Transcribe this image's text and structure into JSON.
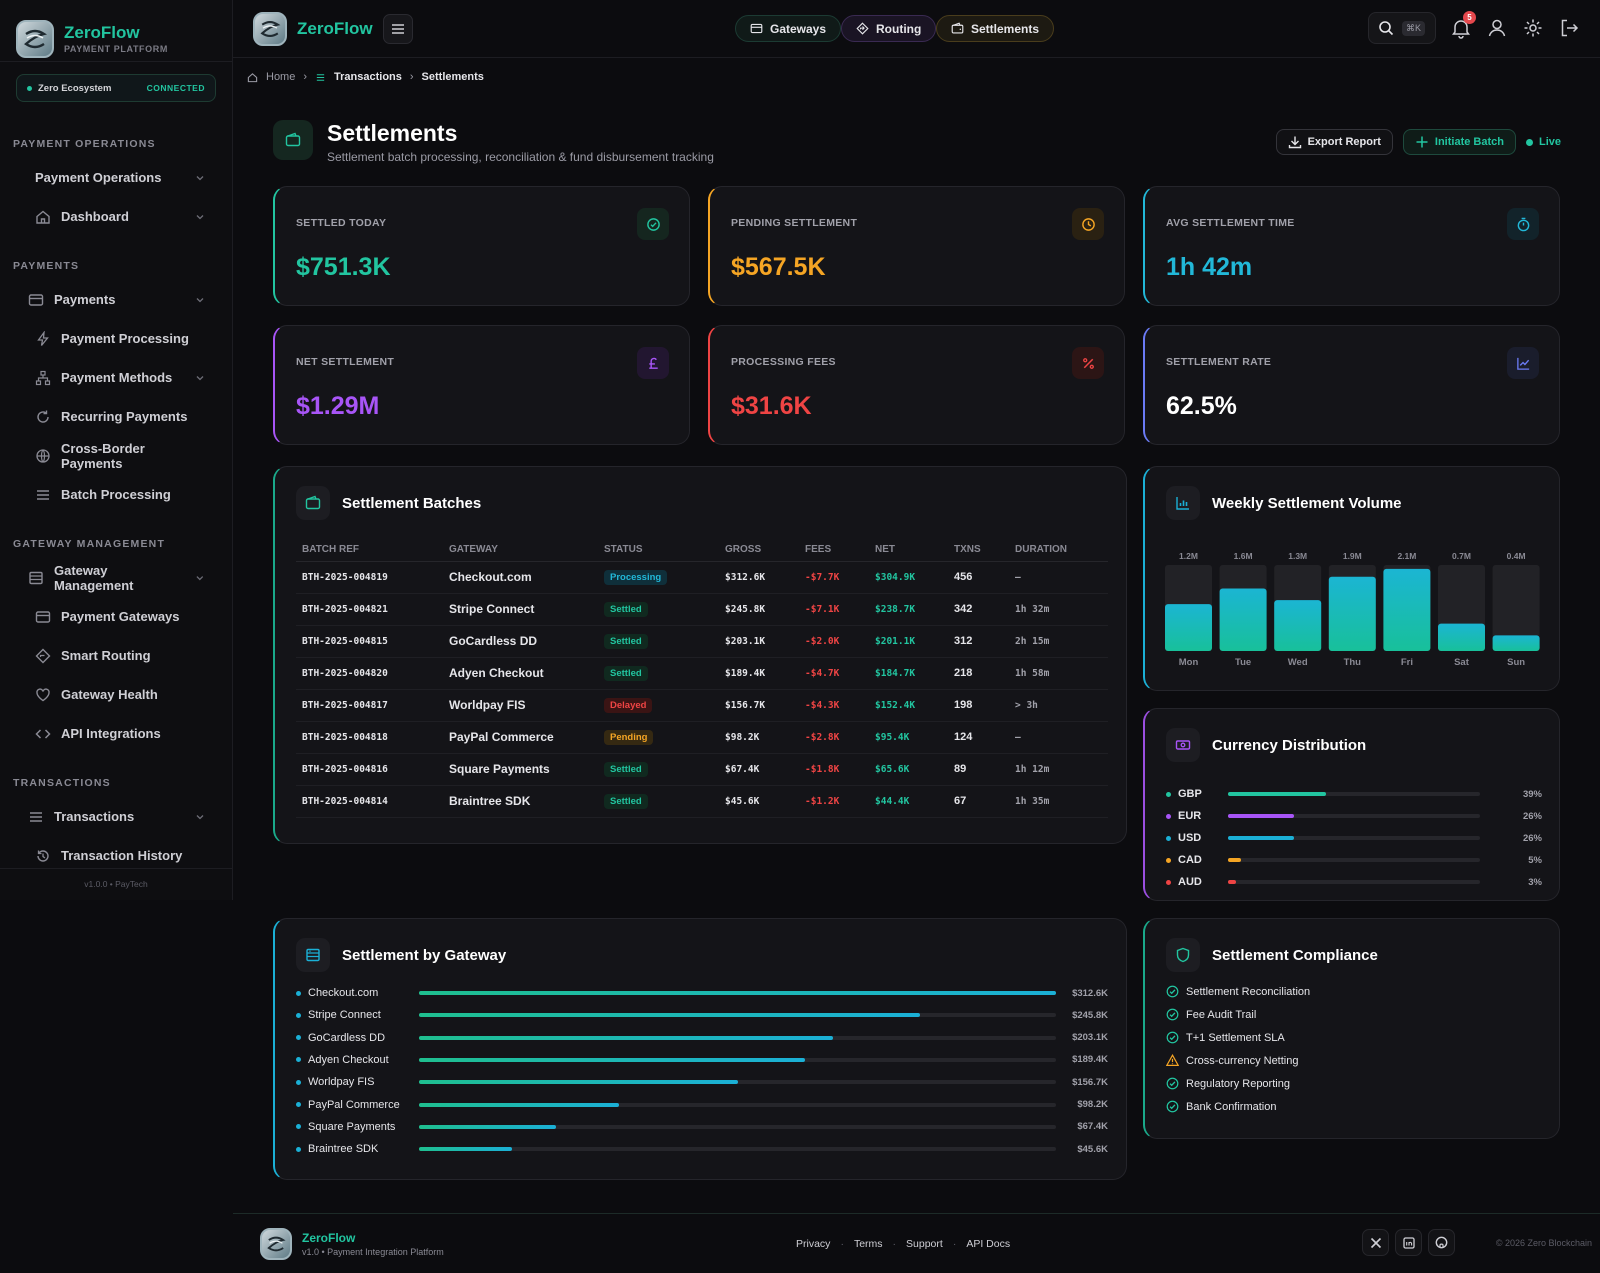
{
  "brand": {
    "name": "ZeroFlow",
    "subtitle": "PAYMENT PLATFORM"
  },
  "ecosystem": {
    "name": "Zero Ecosystem",
    "status": "CONNECTED"
  },
  "sidebar": {
    "sections": [
      {
        "title": "PAYMENT OPERATIONS",
        "items": [
          {
            "label": "Payment Operations",
            "icon": "none",
            "chevron": true
          },
          {
            "label": "Dashboard",
            "icon": "home-icon",
            "chevron": true
          }
        ]
      },
      {
        "title": "PAYMENTS",
        "items": [
          {
            "label": "Payments",
            "icon": "card-icon",
            "chevron": true
          },
          {
            "label": "Payment Processing",
            "icon": "bolt-icon"
          },
          {
            "label": "Payment Methods",
            "icon": "network-icon",
            "chevron": true
          },
          {
            "label": "Recurring Payments",
            "icon": "refresh-icon"
          },
          {
            "label": "Cross-Border Payments",
            "icon": "globe-icon"
          },
          {
            "label": "Batch Processing",
            "icon": "list-icon"
          }
        ]
      },
      {
        "title": "GATEWAY MANAGEMENT",
        "items": [
          {
            "label": "Gateway Management",
            "icon": "server-icon",
            "chevron": true
          },
          {
            "label": "Payment Gateways",
            "icon": "card-icon"
          },
          {
            "label": "Smart Routing",
            "icon": "diamond-icon"
          },
          {
            "label": "Gateway Health",
            "icon": "heart-icon"
          },
          {
            "label": "API Integrations",
            "icon": "code-icon"
          }
        ]
      },
      {
        "title": "TRANSACTIONS",
        "items": [
          {
            "label": "Transactions",
            "icon": "list-icon",
            "chevron": true
          },
          {
            "label": "Transaction History",
            "icon": "history-icon"
          }
        ]
      }
    ],
    "footer": "v1.0.0  •  PayTech"
  },
  "topbar": {
    "pills": [
      {
        "label": "Gateways",
        "icon": "card-icon"
      },
      {
        "label": "Routing",
        "icon": "diamond-icon"
      },
      {
        "label": "Settlements",
        "icon": "wallet-icon"
      }
    ],
    "search_kbd": "⌘K",
    "notifications": "5"
  },
  "breadcrumb": {
    "home": "Home",
    "section": "Transactions",
    "current": "Settlements"
  },
  "page": {
    "title": "Settlements",
    "subtitle": "Settlement batch processing, reconciliation & fund disbursement tracking",
    "export": "Export Report",
    "initiate": "Initiate Batch",
    "live": "Live"
  },
  "stats": [
    {
      "label": "SETTLED TODAY",
      "value": "$751.3K",
      "color": "#22c5a0",
      "icon": "check-circle-icon"
    },
    {
      "label": "PENDING SETTLEMENT",
      "value": "$567.5K",
      "color": "#f5a524",
      "icon": "clock-icon"
    },
    {
      "label": "AVG SETTLEMENT TIME",
      "value": "1h 42m",
      "color": "#22b8d8",
      "icon": "timer-icon"
    },
    {
      "label": "NET SETTLEMENT",
      "value": "$1.29M",
      "color": "#a855f7",
      "icon": "pound-icon"
    },
    {
      "label": "PROCESSING FEES",
      "value": "$31.6K",
      "color": "#ef4444",
      "icon": "percent-icon"
    },
    {
      "label": "SETTLEMENT RATE",
      "value": "62.5%",
      "color": "#ffffff",
      "icon": "trend-icon"
    }
  ],
  "batches": {
    "title": "Settlement Batches",
    "columns": [
      "BATCH REF",
      "GATEWAY",
      "STATUS",
      "GROSS",
      "FEES",
      "NET",
      "TXNS",
      "DURATION"
    ],
    "rows": [
      [
        "BTH-2025-004819",
        "Checkout.com",
        "Processing",
        "$312.6K",
        "-$7.7K",
        "$304.9K",
        "456",
        "—"
      ],
      [
        "BTH-2025-004821",
        "Stripe Connect",
        "Settled",
        "$245.8K",
        "-$7.1K",
        "$238.7K",
        "342",
        "1h 32m"
      ],
      [
        "BTH-2025-004815",
        "GoCardless DD",
        "Settled",
        "$203.1K",
        "-$2.0K",
        "$201.1K",
        "312",
        "2h 15m"
      ],
      [
        "BTH-2025-004820",
        "Adyen Checkout",
        "Settled",
        "$189.4K",
        "-$4.7K",
        "$184.7K",
        "218",
        "1h 58m"
      ],
      [
        "BTH-2025-004817",
        "Worldpay FIS",
        "Delayed",
        "$156.7K",
        "-$4.3K",
        "$152.4K",
        "198",
        "> 3h"
      ],
      [
        "BTH-2025-004818",
        "PayPal Commerce",
        "Pending",
        "$98.2K",
        "-$2.8K",
        "$95.4K",
        "124",
        "—"
      ],
      [
        "BTH-2025-004816",
        "Square Payments",
        "Settled",
        "$67.4K",
        "-$1.8K",
        "$65.6K",
        "89",
        "1h 12m"
      ],
      [
        "BTH-2025-004814",
        "Braintree SDK",
        "Settled",
        "$45.6K",
        "-$1.2K",
        "$44.4K",
        "67",
        "1h 35m"
      ]
    ]
  },
  "weekly": {
    "title": "Weekly Settlement Volume"
  },
  "chart_data": {
    "type": "bar",
    "title": "Weekly Settlement Volume",
    "categories": [
      "Mon",
      "Tue",
      "Wed",
      "Thu",
      "Fri",
      "Sat",
      "Sun"
    ],
    "labels": [
      "1.2M",
      "1.6M",
      "1.3M",
      "1.9M",
      "2.1M",
      "0.7M",
      "0.4M"
    ],
    "values": [
      1.2,
      1.6,
      1.3,
      1.9,
      2.1,
      0.7,
      0.4
    ]
  },
  "currency": {
    "title": "Currency Distribution",
    "rows": [
      {
        "code": "GBP",
        "pct": "39%",
        "value": 39,
        "color": "#22c5a0"
      },
      {
        "code": "EUR",
        "pct": "26%",
        "value": 26,
        "color": "#a855f7"
      },
      {
        "code": "USD",
        "pct": "26%",
        "value": 26,
        "color": "#1bb0d6"
      },
      {
        "code": "CAD",
        "pct": "5%",
        "value": 5,
        "color": "#f5a524"
      },
      {
        "code": "AUD",
        "pct": "3%",
        "value": 3,
        "color": "#ef4444"
      }
    ]
  },
  "gateways": {
    "title": "Settlement by Gateway",
    "rows": [
      {
        "name": "Checkout.com",
        "label": "$312.6K",
        "value": 312.6
      },
      {
        "name": "Stripe Connect",
        "label": "$245.8K",
        "value": 245.8
      },
      {
        "name": "GoCardless DD",
        "label": "$203.1K",
        "value": 203.1
      },
      {
        "name": "Adyen Checkout",
        "label": "$189.4K",
        "value": 189.4
      },
      {
        "name": "Worldpay FIS",
        "label": "$156.7K",
        "value": 156.7
      },
      {
        "name": "PayPal Commerce",
        "label": "$98.2K",
        "value": 98.2
      },
      {
        "name": "Square Payments",
        "label": "$67.4K",
        "value": 67.4
      },
      {
        "name": "Braintree SDK",
        "label": "$45.6K",
        "value": 45.6
      }
    ]
  },
  "compliance": {
    "title": "Settlement Compliance",
    "items": [
      {
        "label": "Settlement Reconciliation",
        "state": "ok"
      },
      {
        "label": "Fee Audit Trail",
        "state": "ok"
      },
      {
        "label": "T+1 Settlement SLA",
        "state": "ok"
      },
      {
        "label": "Cross-currency Netting",
        "state": "warn"
      },
      {
        "label": "Regulatory Reporting",
        "state": "ok"
      },
      {
        "label": "Bank Confirmation",
        "state": "ok"
      }
    ]
  },
  "footer": {
    "name": "ZeroFlow",
    "tagline": "v1.0 • Payment Integration Platform",
    "links": [
      "Privacy",
      "Terms",
      "Support",
      "API Docs"
    ],
    "copyright": "© 2026 Zero Blockchain"
  }
}
